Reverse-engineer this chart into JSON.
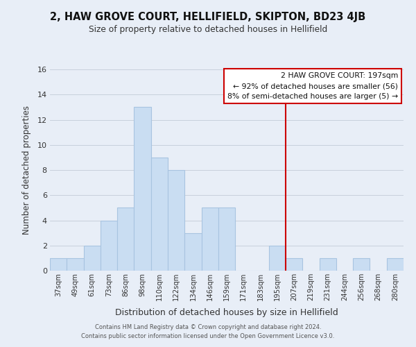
{
  "title": "2, HAW GROVE COURT, HELLIFIELD, SKIPTON, BD23 4JB",
  "subtitle": "Size of property relative to detached houses in Hellifield",
  "xlabel": "Distribution of detached houses by size in Hellifield",
  "ylabel": "Number of detached properties",
  "bar_labels": [
    "37sqm",
    "49sqm",
    "61sqm",
    "73sqm",
    "86sqm",
    "98sqm",
    "110sqm",
    "122sqm",
    "134sqm",
    "146sqm",
    "159sqm",
    "171sqm",
    "183sqm",
    "195sqm",
    "207sqm",
    "219sqm",
    "231sqm",
    "244sqm",
    "256sqm",
    "268sqm",
    "280sqm"
  ],
  "bar_values": [
    1,
    1,
    2,
    4,
    5,
    13,
    9,
    8,
    3,
    5,
    5,
    0,
    0,
    2,
    1,
    0,
    1,
    0,
    1,
    0,
    1
  ],
  "bar_color": "#c9ddf2",
  "bar_edge_color": "#a8c4e0",
  "vline_x_index": 13.5,
  "vline_color": "#cc0000",
  "ylim": [
    0,
    16
  ],
  "yticks": [
    0,
    2,
    4,
    6,
    8,
    10,
    12,
    14,
    16
  ],
  "annotation_title": "2 HAW GROVE COURT: 197sqm",
  "annotation_line1": "← 92% of detached houses are smaller (56)",
  "annotation_line2": "8% of semi-detached houses are larger (5) →",
  "annotation_box_color": "#ffffff",
  "annotation_box_edge": "#cc0000",
  "footer_line1": "Contains HM Land Registry data © Crown copyright and database right 2024.",
  "footer_line2": "Contains public sector information licensed under the Open Government Licence v3.0.",
  "background_color": "#e8eef7",
  "grid_color": "#c8d0dc",
  "plot_bg_color": "#e8eef7"
}
